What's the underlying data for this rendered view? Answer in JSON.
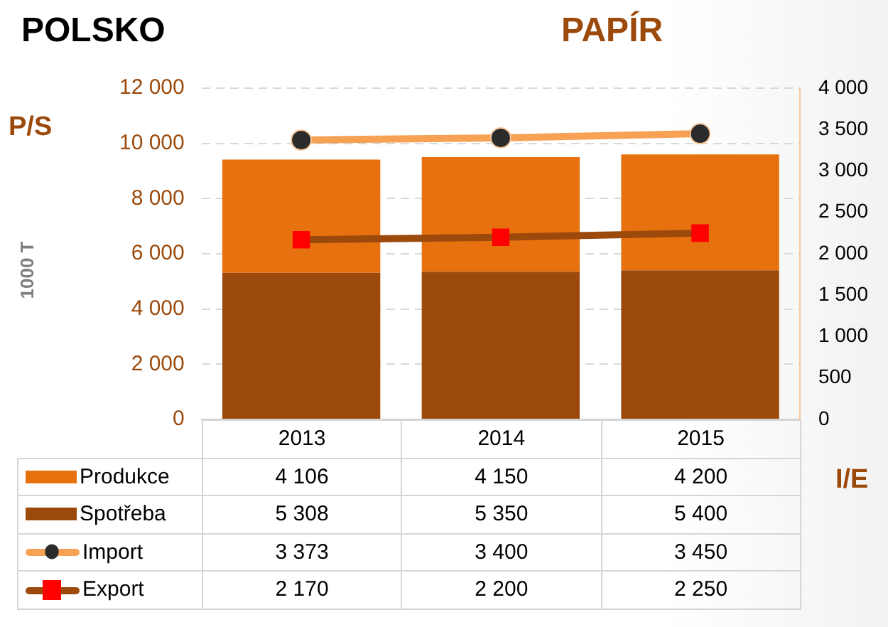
{
  "chart_data": {
    "type": "bar",
    "title": "PAPÍR",
    "subtitle": "POLSKO",
    "ylabel": "1000 T",
    "y2label": "I/E",
    "annotations": [
      "P/S"
    ],
    "categories": [
      "2013",
      "2014",
      "2015"
    ],
    "stacked": true,
    "data_labels": true,
    "grid": "y",
    "legend": "bottom left",
    "series": [
      {
        "name": "Spotřeba",
        "color": "#9c4a0c",
        "values": [
          5308,
          5350,
          5400
        ]
      },
      {
        "name": "Produkce",
        "color": "#e8710f",
        "values": [
          4106,
          4150,
          4200
        ]
      },
      {
        "name": "Import",
        "type": "line",
        "axis": "y2",
        "color": "#f7a155",
        "marker": "circle",
        "values": [
          3373,
          3400,
          3450
        ]
      },
      {
        "name": "Export",
        "type": "line",
        "axis": "y2",
        "color": "#9c4a0c",
        "marker": "square",
        "values": [
          2170,
          2200,
          2250
        ]
      }
    ],
    "ylim": [
      0,
      12000
    ],
    "yticks": [
      0,
      {
        "value": 2000,
        "label": "2 000"
      },
      {
        "value": 4000,
        "label": "4 000"
      },
      {
        "value": 6000,
        "label": "6 000"
      },
      {
        "value": 8000,
        "label": "8 000"
      },
      {
        "value": 10000,
        "label": "10 000"
      },
      {
        "value": 12000,
        "label": "12 000"
      }
    ],
    "y2lim": [
      0,
      4000
    ],
    "y2ticks": [
      0,
      {
        "value": 500,
        "label": "500"
      },
      {
        "value": 1000,
        "label": "1 000"
      },
      {
        "value": 1500,
        "label": "1 500"
      },
      {
        "value": 2000,
        "label": "2 000"
      },
      {
        "value": 2500,
        "label": "2 500"
      },
      {
        "value": 3000,
        "label": "3 000"
      },
      {
        "value": 3500,
        "label": "3 500"
      },
      {
        "value": 4000,
        "label": "4 000"
      }
    ]
  }
}
